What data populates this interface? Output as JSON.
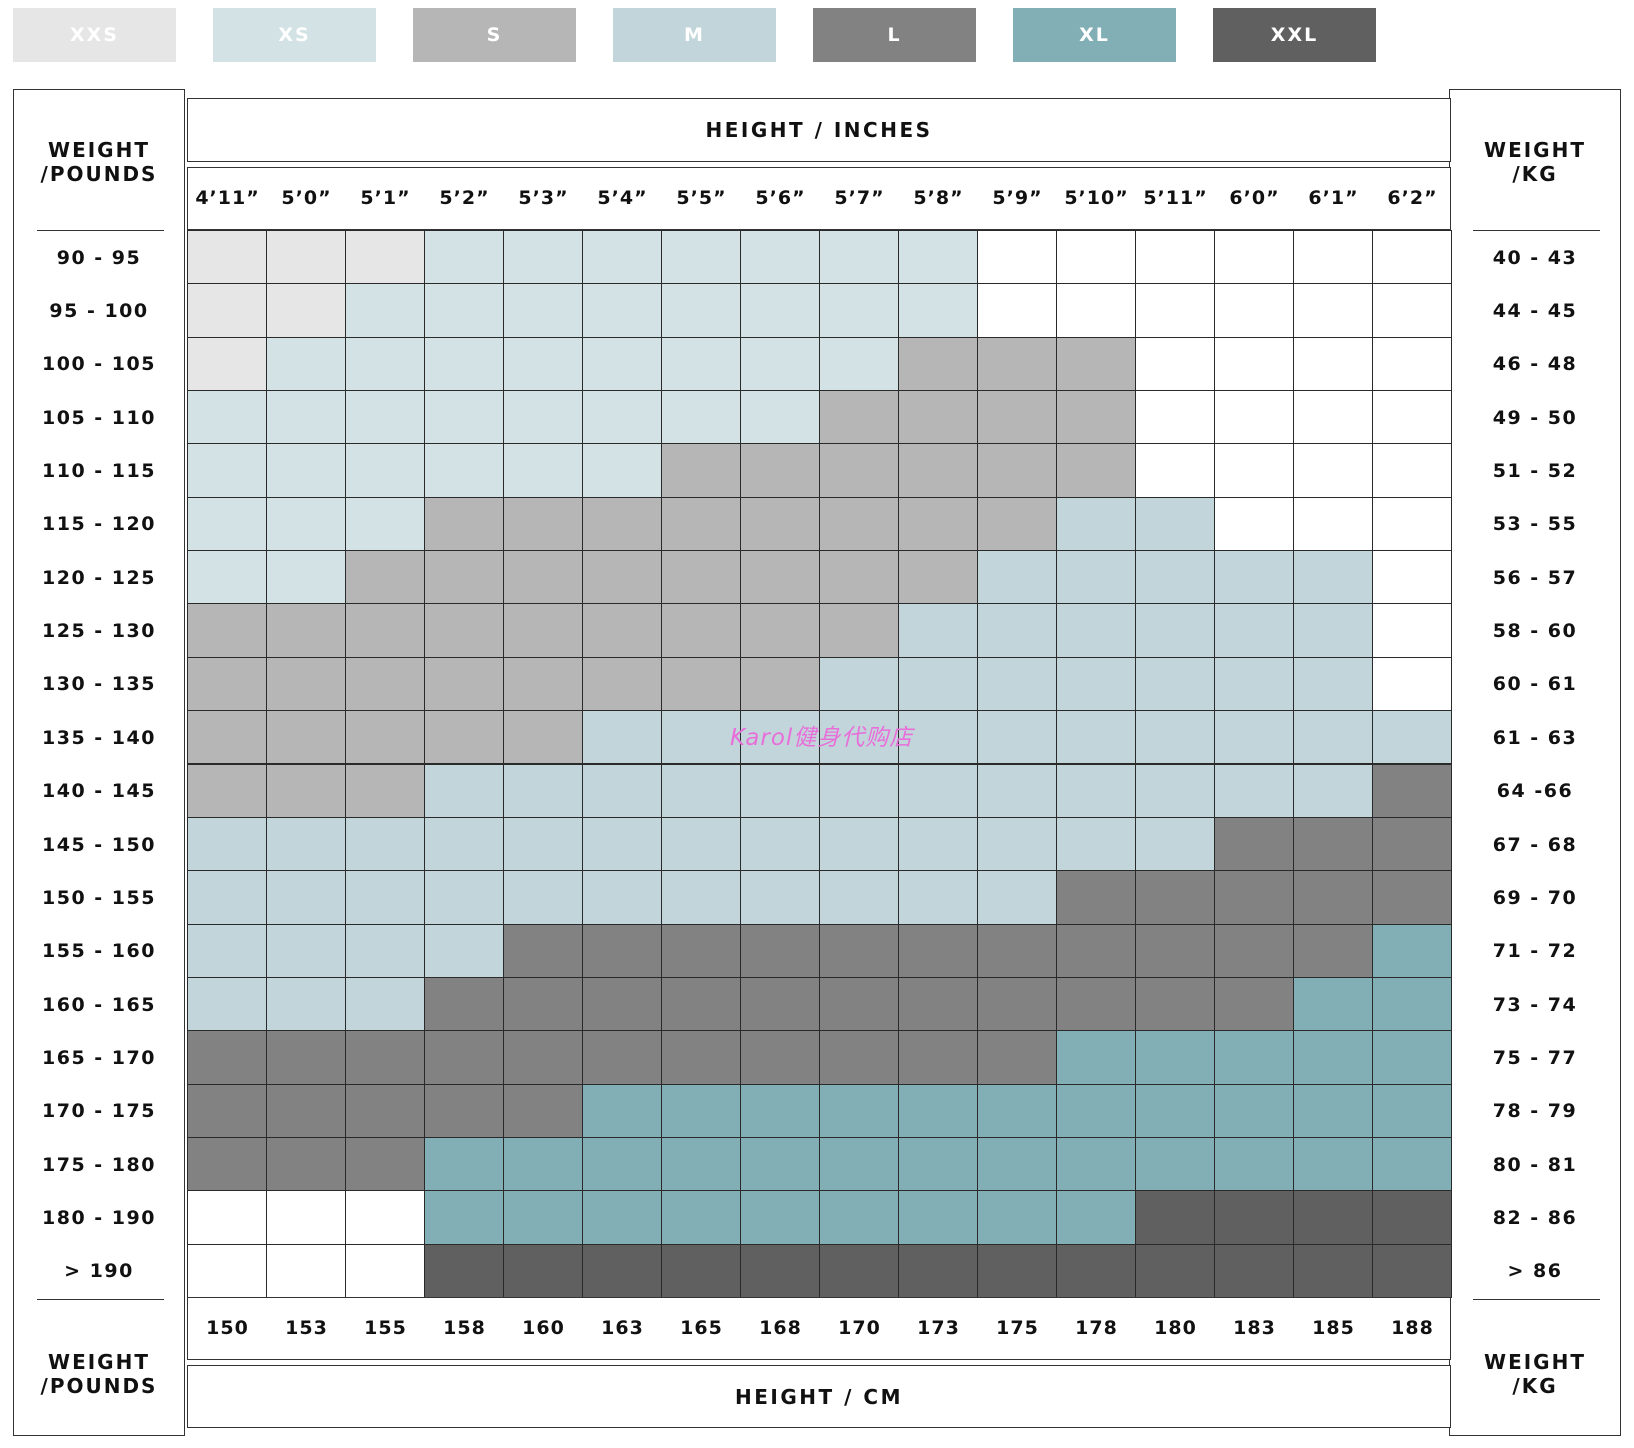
{
  "legend": [
    {
      "label": "XXS",
      "color": "#e6e6e6"
    },
    {
      "label": "XS",
      "color": "#d3e2e4"
    },
    {
      "label": "S",
      "color": "#b6b6b6"
    },
    {
      "label": "M",
      "color": "#c2d5da"
    },
    {
      "label": "L",
      "color": "#828282"
    },
    {
      "label": "XL",
      "color": "#82aeb6"
    },
    {
      "label": "XXL",
      "color": "#606060"
    }
  ],
  "empty_color": "#ffffff",
  "left_panel": {
    "title_top": "WEIGHT\n/POUNDS",
    "title_bottom": "WEIGHT\n/POUNDS"
  },
  "right_panel": {
    "title_top": "WEIGHT\n/KG",
    "title_bottom": "WEIGHT\n/KG"
  },
  "top_header": {
    "title": "HEIGHT / INCHES"
  },
  "bottom_header": {
    "title": "HEIGHT / CM"
  },
  "heights_inches": [
    "4’11”",
    "5’0”",
    "5’1”",
    "5’2”",
    "5’3”",
    "5’4”",
    "5’5”",
    "5’6”",
    "5’7”",
    "5’8”",
    "5’9”",
    "5’10”",
    "5’11”",
    "6’0”",
    "6’1”",
    "6’2”"
  ],
  "heights_cm": [
    "150",
    "153",
    "155",
    "158",
    "160",
    "163",
    "165",
    "168",
    "170",
    "173",
    "175",
    "178",
    "180",
    "183",
    "185",
    "188"
  ],
  "weights_pounds": [
    "90 - 95",
    "95 - 100",
    "100 - 105",
    "105 - 110",
    "110 - 115",
    "115 - 120",
    "120 - 125",
    "125 - 130",
    "130 - 135",
    "135 - 140",
    "140 - 145",
    "145 - 150",
    "150 - 155",
    "155 - 160",
    "160 - 165",
    "165 - 170",
    "170 - 175",
    "175 - 180",
    "180 - 190",
    "> 190"
  ],
  "weights_kg": [
    "40 - 43",
    "44 - 45",
    "46 - 48",
    "49 - 50",
    "51 - 52",
    "53 - 55",
    "56 - 57",
    "58 - 60",
    "60 - 61",
    "61 - 63",
    "64 -66",
    "67 - 68",
    "69 - 70",
    "71 - 72",
    "73 - 74",
    "75 - 77",
    "78 - 79",
    "80 - 81",
    "82 - 86",
    "> 86"
  ],
  "size_grid": [
    [
      "XXS",
      "XXS",
      "XXS",
      "XS",
      "XS",
      "XS",
      "XS",
      "XS",
      "XS",
      "XS",
      "",
      "",
      "",
      "",
      "",
      ""
    ],
    [
      "XXS",
      "XXS",
      "XS",
      "XS",
      "XS",
      "XS",
      "XS",
      "XS",
      "XS",
      "XS",
      "",
      "",
      "",
      "",
      "",
      ""
    ],
    [
      "XXS",
      "XS",
      "XS",
      "XS",
      "XS",
      "XS",
      "XS",
      "XS",
      "XS",
      "S",
      "S",
      "S",
      "",
      "",
      "",
      ""
    ],
    [
      "XS",
      "XS",
      "XS",
      "XS",
      "XS",
      "XS",
      "XS",
      "XS",
      "S",
      "S",
      "S",
      "S",
      "",
      "",
      "",
      ""
    ],
    [
      "XS",
      "XS",
      "XS",
      "XS",
      "XS",
      "XS",
      "S",
      "S",
      "S",
      "S",
      "S",
      "S",
      "",
      "",
      "",
      ""
    ],
    [
      "XS",
      "XS",
      "XS",
      "S",
      "S",
      "S",
      "S",
      "S",
      "S",
      "S",
      "S",
      "M",
      "M",
      "",
      "",
      ""
    ],
    [
      "XS",
      "XS",
      "S",
      "S",
      "S",
      "S",
      "S",
      "S",
      "S",
      "S",
      "M",
      "M",
      "M",
      "M",
      "M",
      ""
    ],
    [
      "S",
      "S",
      "S",
      "S",
      "S",
      "S",
      "S",
      "S",
      "S",
      "M",
      "M",
      "M",
      "M",
      "M",
      "M",
      ""
    ],
    [
      "S",
      "S",
      "S",
      "S",
      "S",
      "S",
      "S",
      "S",
      "M",
      "M",
      "M",
      "M",
      "M",
      "M",
      "M",
      ""
    ],
    [
      "S",
      "S",
      "S",
      "S",
      "S",
      "M",
      "M",
      "M",
      "M",
      "M",
      "M",
      "M",
      "M",
      "M",
      "M",
      "M"
    ],
    [
      "S",
      "S",
      "S",
      "M",
      "M",
      "M",
      "M",
      "M",
      "M",
      "M",
      "M",
      "M",
      "M",
      "M",
      "M",
      "L"
    ],
    [
      "M",
      "M",
      "M",
      "M",
      "M",
      "M",
      "M",
      "M",
      "M",
      "M",
      "M",
      "M",
      "M",
      "L",
      "L",
      "L"
    ],
    [
      "M",
      "M",
      "M",
      "M",
      "M",
      "M",
      "M",
      "M",
      "M",
      "M",
      "M",
      "L",
      "L",
      "L",
      "L",
      "L"
    ],
    [
      "M",
      "M",
      "M",
      "M",
      "L",
      "L",
      "L",
      "L",
      "L",
      "L",
      "L",
      "L",
      "L",
      "L",
      "L",
      "XL"
    ],
    [
      "M",
      "M",
      "M",
      "L",
      "L",
      "L",
      "L",
      "L",
      "L",
      "L",
      "L",
      "L",
      "L",
      "L",
      "XL",
      "XL"
    ],
    [
      "L",
      "L",
      "L",
      "L",
      "L",
      "L",
      "L",
      "L",
      "L",
      "L",
      "L",
      "XL",
      "XL",
      "XL",
      "XL",
      "XL"
    ],
    [
      "L",
      "L",
      "L",
      "L",
      "L",
      "XL",
      "XL",
      "XL",
      "XL",
      "XL",
      "XL",
      "XL",
      "XL",
      "XL",
      "XL",
      "XL"
    ],
    [
      "L",
      "L",
      "L",
      "XL",
      "XL",
      "XL",
      "XL",
      "XL",
      "XL",
      "XL",
      "XL",
      "XL",
      "XL",
      "XL",
      "XL",
      "XL"
    ],
    [
      "",
      "",
      "",
      "XL",
      "XL",
      "XL",
      "XL",
      "XL",
      "XL",
      "XL",
      "XL",
      "XL",
      "XXL",
      "XXL",
      "XXL",
      "XXL"
    ],
    [
      "",
      "",
      "",
      "XXL",
      "XXL",
      "XXL",
      "XXL",
      "XXL",
      "XXL",
      "XXL",
      "XXL",
      "XXL",
      "XXL",
      "XXL",
      "XXL",
      "XXL"
    ]
  ],
  "watermark": "Karol健身代购店"
}
